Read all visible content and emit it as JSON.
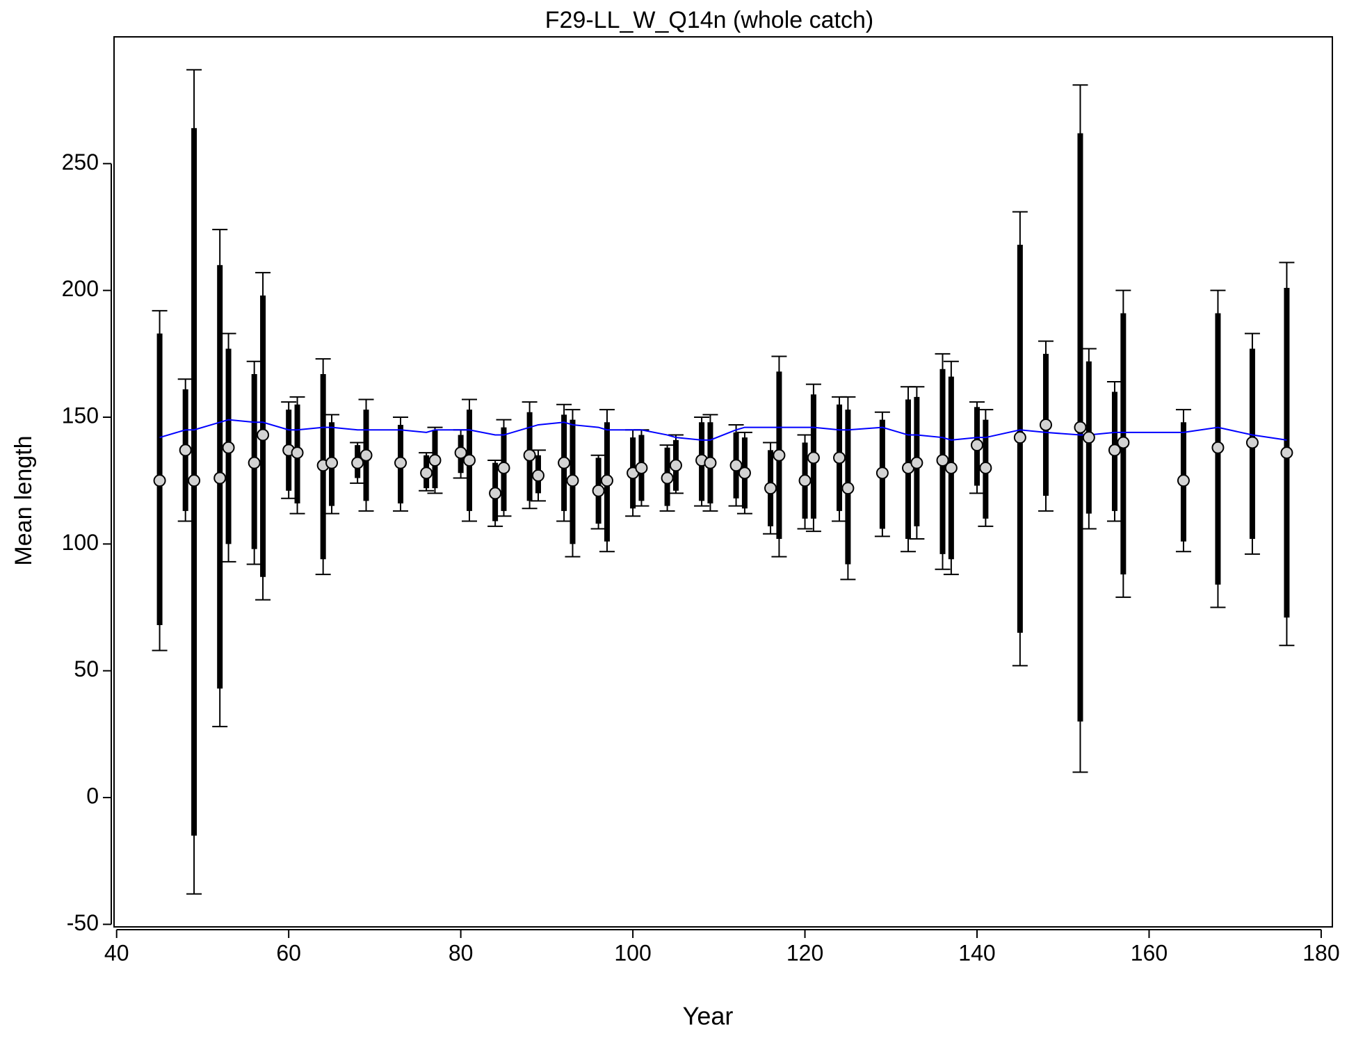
{
  "chart_data": {
    "type": "errorbar",
    "title": "F29-LL_W_Q14n (whole catch)",
    "x_label": "Year",
    "y_label": "Mean length",
    "x": [
      45,
      48,
      49,
      52,
      53,
      56,
      57,
      60,
      61,
      64,
      65,
      68,
      69,
      73,
      76,
      77,
      80,
      81,
      84,
      85,
      88,
      89,
      92,
      93,
      96,
      97,
      100,
      101,
      104,
      105,
      108,
      109,
      112,
      113,
      116,
      117,
      120,
      121,
      124,
      125,
      129,
      132,
      133,
      136,
      137,
      140,
      141,
      145,
      148,
      152,
      153,
      156,
      157,
      164,
      168,
      172,
      176
    ],
    "values": [
      125,
      137,
      125,
      126,
      138,
      132,
      143,
      137,
      136,
      131,
      132,
      132,
      135,
      132,
      128,
      133,
      136,
      133,
      120,
      130,
      135,
      127,
      132,
      125,
      121,
      125,
      128,
      130,
      126,
      131,
      133,
      132,
      131,
      128,
      122,
      135,
      125,
      134,
      134,
      122,
      128,
      130,
      132,
      133,
      130,
      139,
      130,
      142,
      147,
      146,
      142,
      137,
      140,
      125,
      138,
      140,
      136
    ],
    "inner_low": [
      68,
      113,
      -15,
      43,
      100,
      98,
      87,
      121,
      116,
      94,
      115,
      126,
      117,
      116,
      122,
      122,
      128,
      113,
      109,
      113,
      117,
      120,
      113,
      100,
      108,
      101,
      114,
      117,
      115,
      121,
      117,
      116,
      118,
      114,
      107,
      102,
      110,
      110,
      113,
      92,
      106,
      102,
      107,
      96,
      94,
      123,
      110,
      65,
      119,
      30,
      112,
      113,
      88,
      101,
      84,
      102,
      71
    ],
    "inner_high": [
      183,
      161,
      264,
      210,
      177,
      167,
      198,
      153,
      155,
      167,
      148,
      139,
      153,
      147,
      135,
      145,
      143,
      153,
      132,
      146,
      152,
      135,
      151,
      149,
      134,
      148,
      142,
      143,
      138,
      141,
      148,
      148,
      144,
      142,
      137,
      168,
      140,
      159,
      155,
      153,
      149,
      157,
      158,
      169,
      166,
      154,
      149,
      218,
      175,
      262,
      172,
      160,
      191,
      148,
      191,
      177,
      201
    ],
    "outer_low": [
      58,
      109,
      -38,
      28,
      93,
      92,
      78,
      118,
      112,
      88,
      112,
      124,
      113,
      113,
      121,
      120,
      126,
      109,
      107,
      111,
      114,
      117,
      109,
      95,
      106,
      97,
      111,
      115,
      113,
      120,
      115,
      113,
      115,
      112,
      104,
      95,
      106,
      105,
      109,
      86,
      103,
      97,
      102,
      90,
      88,
      120,
      107,
      52,
      113,
      10,
      106,
      109,
      79,
      97,
      75,
      96,
      60
    ],
    "outer_high": [
      192,
      165,
      287,
      224,
      183,
      172,
      207,
      156,
      158,
      173,
      151,
      140,
      157,
      150,
      136,
      146,
      145,
      157,
      133,
      149,
      156,
      137,
      155,
      153,
      135,
      153,
      145,
      145,
      139,
      143,
      150,
      151,
      147,
      144,
      140,
      174,
      143,
      163,
      158,
      158,
      152,
      162,
      162,
      175,
      172,
      156,
      153,
      231,
      180,
      281,
      177,
      164,
      200,
      153,
      200,
      183,
      211
    ],
    "expected": [
      142,
      145,
      145,
      148,
      149,
      148,
      148,
      145,
      145,
      146,
      146,
      145,
      145,
      145,
      144,
      145,
      145,
      145,
      143,
      143,
      146,
      147,
      148,
      147,
      146,
      145,
      145,
      145,
      143,
      142,
      141,
      141,
      145,
      146,
      146,
      146,
      146,
      146,
      145,
      145,
      146,
      143,
      143,
      142,
      141,
      142,
      142,
      145,
      144,
      143,
      143,
      144,
      144,
      144,
      146,
      143,
      141
    ],
    "point_color": "#d3d3d3",
    "bar_color": "#000000",
    "line_color": "#0000ff",
    "xlim": [
      39.7,
      181.3
    ],
    "ylim": [
      -51,
      300
    ],
    "xticks": [
      40,
      60,
      80,
      100,
      120,
      140,
      160,
      180
    ],
    "yticks": [
      -50,
      0,
      50,
      100,
      150,
      200,
      250
    ]
  }
}
